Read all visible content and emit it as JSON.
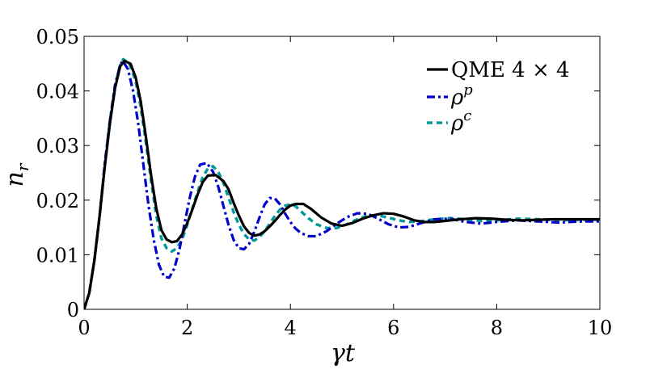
{
  "chart_data": {
    "type": "line",
    "title": "",
    "xlabel": "γt",
    "ylabel_main": "n",
    "ylabel_sub": "r",
    "xlim": [
      0,
      10
    ],
    "ylim": [
      0,
      0.05
    ],
    "xticks": [
      0,
      2,
      4,
      6,
      8,
      10
    ],
    "xtick_labels": [
      "0",
      "2",
      "4",
      "6",
      "8",
      "10"
    ],
    "yticks": [
      0,
      0.01,
      0.02,
      0.03,
      0.04,
      0.05
    ],
    "ytick_labels": [
      "0",
      "0.01",
      "0.02",
      "0.03",
      "0.04",
      "0.05"
    ],
    "grid": false,
    "legend_position": "top-right",
    "series": [
      {
        "name": "QME 4 × 4",
        "legend_main": "QME 4 × 4",
        "legend_sup": "",
        "color": "#000000",
        "style": "solid",
        "x": [
          0,
          0.1,
          0.2,
          0.3,
          0.4,
          0.5,
          0.6,
          0.7,
          0.78,
          0.9,
          1.0,
          1.1,
          1.2,
          1.3,
          1.4,
          1.5,
          1.6,
          1.7,
          1.8,
          1.9,
          2.0,
          2.1,
          2.2,
          2.3,
          2.4,
          2.55,
          2.7,
          2.8,
          2.9,
          3.0,
          3.1,
          3.2,
          3.3,
          3.4,
          3.5,
          3.6,
          3.7,
          3.8,
          3.9,
          4.0,
          4.1,
          4.25,
          4.4,
          4.6,
          4.8,
          5.0,
          5.2,
          5.4,
          5.6,
          5.8,
          6.0,
          6.2,
          6.4,
          6.6,
          6.8,
          7.0,
          7.3,
          7.6,
          7.9,
          8.2,
          8.5,
          8.8,
          9.1,
          9.4,
          9.7,
          10.0
        ],
        "y": [
          0,
          0.003,
          0.009,
          0.017,
          0.026,
          0.034,
          0.0405,
          0.0445,
          0.0455,
          0.045,
          0.0425,
          0.038,
          0.0315,
          0.0245,
          0.0185,
          0.0145,
          0.0128,
          0.0123,
          0.0125,
          0.0137,
          0.0158,
          0.0183,
          0.021,
          0.0233,
          0.0245,
          0.0246,
          0.0235,
          0.022,
          0.0195,
          0.0172,
          0.0152,
          0.014,
          0.0135,
          0.0137,
          0.0143,
          0.0152,
          0.0162,
          0.0173,
          0.0183,
          0.019,
          0.0193,
          0.0193,
          0.0184,
          0.0168,
          0.0157,
          0.0153,
          0.0158,
          0.0166,
          0.0172,
          0.0176,
          0.0175,
          0.017,
          0.0163,
          0.016,
          0.016,
          0.0162,
          0.0165,
          0.0167,
          0.0166,
          0.0164,
          0.0163,
          0.0164,
          0.0165,
          0.0165,
          0.0165,
          0.0165
        ]
      },
      {
        "name": "ρ^p",
        "legend_main": "ρ",
        "legend_sup": "p",
        "color": "#0000cc",
        "style": "dashdot",
        "x": [
          0,
          0.1,
          0.2,
          0.3,
          0.4,
          0.5,
          0.6,
          0.7,
          0.75,
          0.85,
          0.95,
          1.05,
          1.15,
          1.25,
          1.35,
          1.45,
          1.55,
          1.65,
          1.75,
          1.85,
          1.95,
          2.05,
          2.15,
          2.25,
          2.38,
          2.5,
          2.6,
          2.7,
          2.8,
          2.9,
          3.0,
          3.1,
          3.2,
          3.3,
          3.4,
          3.5,
          3.6,
          3.7,
          3.8,
          3.9,
          4.0,
          4.1,
          4.2,
          4.35,
          4.5,
          4.7,
          4.9,
          5.1,
          5.3,
          5.5,
          5.7,
          5.9,
          6.1,
          6.3,
          6.5,
          6.8,
          7.1,
          7.4,
          7.7,
          8.0,
          8.4,
          8.8,
          9.2,
          9.6,
          10.0
        ],
        "y": [
          0,
          0.003,
          0.009,
          0.017,
          0.0265,
          0.0345,
          0.041,
          0.0448,
          0.0455,
          0.044,
          0.04,
          0.034,
          0.0265,
          0.019,
          0.0128,
          0.0082,
          0.006,
          0.0058,
          0.0075,
          0.011,
          0.0158,
          0.0205,
          0.0243,
          0.0265,
          0.0268,
          0.0252,
          0.0225,
          0.019,
          0.0155,
          0.0127,
          0.0112,
          0.011,
          0.012,
          0.0142,
          0.0168,
          0.0192,
          0.0204,
          0.0203,
          0.0192,
          0.0175,
          0.016,
          0.0148,
          0.014,
          0.0134,
          0.0134,
          0.0143,
          0.0157,
          0.0169,
          0.0176,
          0.0175,
          0.0166,
          0.0156,
          0.015,
          0.0151,
          0.0157,
          0.0165,
          0.0166,
          0.016,
          0.0157,
          0.016,
          0.0163,
          0.0161,
          0.0159,
          0.0161,
          0.0161
        ]
      },
      {
        "name": "ρ^c",
        "legend_main": "ρ",
        "legend_sup": "c",
        "color": "#009999",
        "style": "dashed",
        "x": [
          0,
          0.1,
          0.2,
          0.3,
          0.4,
          0.5,
          0.6,
          0.7,
          0.76,
          0.88,
          1.0,
          1.1,
          1.2,
          1.3,
          1.4,
          1.5,
          1.6,
          1.7,
          1.8,
          1.9,
          2.0,
          2.1,
          2.2,
          2.3,
          2.4,
          2.5,
          2.6,
          2.7,
          2.8,
          2.9,
          3.0,
          3.1,
          3.2,
          3.3,
          3.4,
          3.5,
          3.6,
          3.7,
          3.8,
          3.9,
          4.0,
          4.1,
          4.2,
          4.35,
          4.5,
          4.7,
          4.9,
          5.1,
          5.3,
          5.5,
          5.7,
          5.9,
          6.1,
          6.3,
          6.5,
          6.8,
          7.1,
          7.4,
          7.7,
          8.0,
          8.4,
          8.8,
          9.2,
          9.6,
          10.0
        ],
        "y": [
          0,
          0.003,
          0.009,
          0.017,
          0.0265,
          0.0345,
          0.041,
          0.0448,
          0.0458,
          0.045,
          0.0418,
          0.037,
          0.0305,
          0.0235,
          0.0172,
          0.013,
          0.0112,
          0.0106,
          0.0112,
          0.0128,
          0.0155,
          0.0185,
          0.0215,
          0.0242,
          0.0258,
          0.0262,
          0.0252,
          0.0232,
          0.0205,
          0.0178,
          0.0155,
          0.0138,
          0.0128,
          0.0126,
          0.0132,
          0.0143,
          0.0157,
          0.0171,
          0.0183,
          0.019,
          0.0192,
          0.0189,
          0.018,
          0.0167,
          0.0156,
          0.0149,
          0.0149,
          0.0156,
          0.0165,
          0.0172,
          0.0172,
          0.0168,
          0.0163,
          0.016,
          0.0161,
          0.0165,
          0.0167,
          0.0165,
          0.0162,
          0.0163,
          0.0166,
          0.0165,
          0.0163,
          0.0164,
          0.0164
        ]
      }
    ]
  }
}
